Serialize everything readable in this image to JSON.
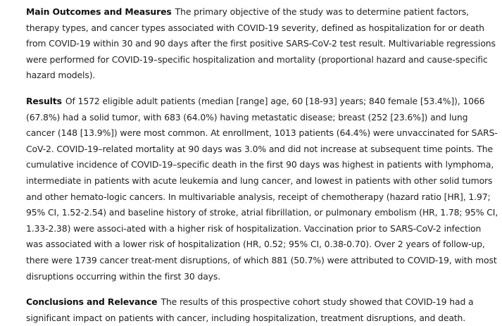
{
  "sections": [
    {
      "heading": "Main Outcomes and Measures",
      "text": "The primary objective of the study was to determine patient factors, therapy types, and cancer types associated with COVID-19 severity, defined as hospitalization for or death from COVID-19 within 30 and 90 days after the first positive SARS-CoV-2 test result. Multivariable regressions were performed for COVID-19–specific hospitalization and mortality (proportional hazard and cause-specific hazard models)."
    },
    {
      "heading": "Results",
      "text": "Of 1572 eligible adult patients (median [range] age, 60 [18-93] years; 840 female [53.4%]), 1066 (67.8%) had a solid tumor, with 683 (64.0%) having metastatic disease; breast (252 [23.6%]) and lung cancer (148 [13.9%]) were most common. At enrollment, 1013 patients (64.4%) were unvaccinated for SARS-CoV-2. COVID-19–related mortality at 90 days was 3.0% and did not increase at subsequent time points. The cumulative incidence of COVID-19–specific death in the first 90 days was highest in patients with lymphoma, intermediate in patients with acute leukemia and lung cancer, and lowest in patients with other solid tumors and other hemato-logic cancers. In multivariable analysis, receipt of chemotherapy (hazard ratio [HR], 1.97; 95% CI, 1.52-2.54) and baseline history of stroke, atrial fibrillation, or pulmonary embolism (HR, 1.78; 95% CI, 1.33-2.38) were associ-ated with a higher risk of hospitalization. Vaccination prior to SARS-CoV-2 infection was associated with a lower risk of hospitalization (HR, 0.52; 95% CI, 0.38-0.70). Over 2 years of follow-up, there were 1739 cancer treat-ment disruptions, of which 881 (50.7%) were attributed to COVID-19, with most disruptions occurring within the first 30 days."
    },
    {
      "heading": "Conclusions and Relevance",
      "text": "The results of this prospective cohort study showed that COVID-19 had a significant impact on patients with cancer, including hospitalization, treatment disruptions, and death."
    }
  ]
}
